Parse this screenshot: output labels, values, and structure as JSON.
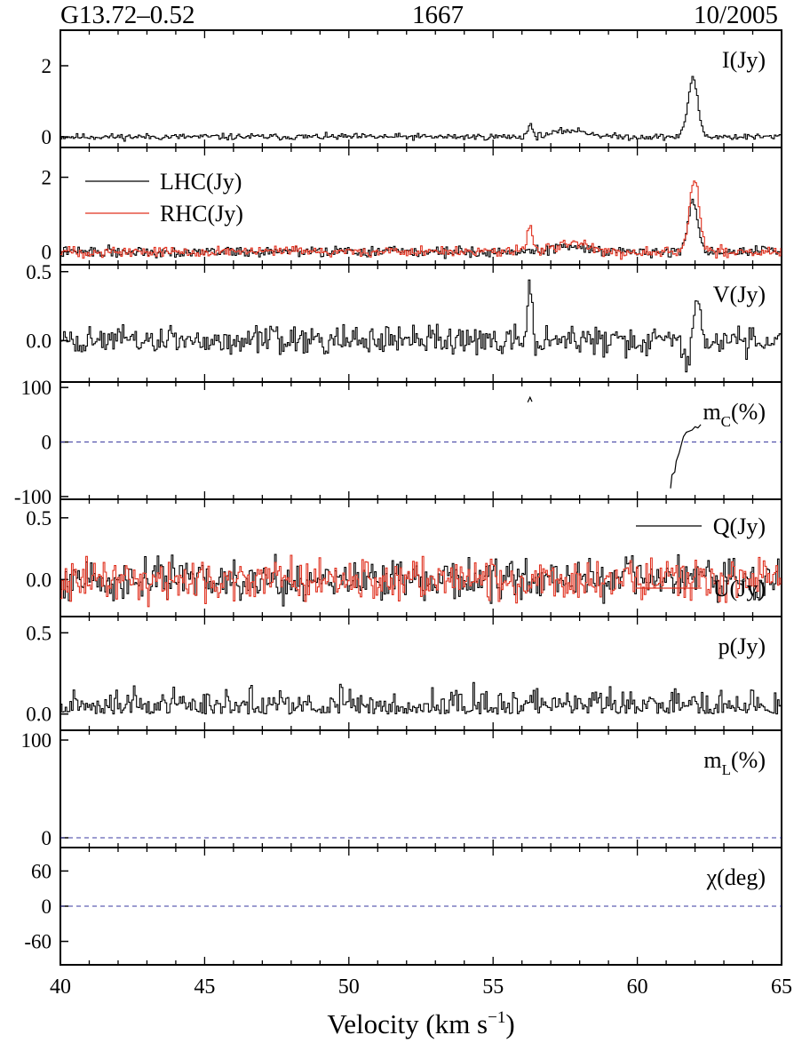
{
  "header": {
    "source": "G13.72–0.52",
    "transition": "1667",
    "epoch": "10/2005"
  },
  "colors": {
    "black": "#000000",
    "red": "#e0301e",
    "dashed": "#3a3aa0"
  },
  "chart_data": {
    "type": "line",
    "shared_x": {
      "label": "Velocity (km s",
      "label_sup": "−1",
      "label_tail": ")",
      "range": [
        40,
        65
      ],
      "ticks": [
        40,
        45,
        50,
        55,
        60,
        65
      ]
    },
    "panels": [
      {
        "id": "I",
        "label_main": "I(Jy)",
        "ylim": [
          -0.3,
          3.0
        ],
        "yticks": [
          0,
          2
        ],
        "features": [
          {
            "v": 56.25,
            "amp": 0.35,
            "w": 0.08
          },
          {
            "v": 57.7,
            "amp": 0.18,
            "w": 0.6
          },
          {
            "v": 61.9,
            "amp": 1.65,
            "w": 0.17
          }
        ],
        "series": [
          {
            "color": "black",
            "seed": 11,
            "noise": 0.045
          }
        ]
      },
      {
        "id": "LHC_RHC",
        "ylim": [
          -0.35,
          2.8
        ],
        "yticks": [
          0,
          2
        ],
        "legend": [
          {
            "name": "LHC(Jy)",
            "color": "black"
          },
          {
            "name": "RHC(Jy)",
            "color": "red"
          }
        ],
        "series": [
          {
            "name": "LHC(Jy)",
            "color": "black",
            "seed": 22,
            "noise": 0.07,
            "features": [
              {
                "v": 57.7,
                "amp": 0.15,
                "w": 0.6
              },
              {
                "v": 61.9,
                "amp": 1.35,
                "w": 0.17
              }
            ]
          },
          {
            "name": "RHC(Jy)",
            "color": "red",
            "seed": 33,
            "noise": 0.07,
            "features": [
              {
                "v": 56.25,
                "amp": 0.75,
                "w": 0.09
              },
              {
                "v": 57.7,
                "amp": 0.2,
                "w": 0.6
              },
              {
                "v": 61.95,
                "amp": 2.0,
                "w": 0.17
              }
            ]
          }
        ]
      },
      {
        "id": "V",
        "label_main": "V(Jy)",
        "ylim": [
          -0.3,
          0.55
        ],
        "yticks": [
          0.5,
          0.0
        ],
        "series": [
          {
            "color": "black",
            "seed": 44,
            "noise": 0.05,
            "features": [
              {
                "v": 56.25,
                "amp": 0.35,
                "w": 0.08
              },
              {
                "v": 61.7,
                "amp": -0.2,
                "w": 0.12
              },
              {
                "v": 62.05,
                "amp": 0.32,
                "w": 0.12
              }
            ]
          }
        ]
      },
      {
        "id": "mC",
        "label_main": "m",
        "label_sub": "C",
        "label_tail": "(%)",
        "ylim": [
          -105,
          110
        ],
        "yticks": [
          100,
          0,
          -100
        ],
        "zero_line": true,
        "curves": [
          {
            "color": "black",
            "x": [
              56.2,
              56.28,
              56.35
            ],
            "y": [
              73,
              82,
              74
            ]
          },
          {
            "color": "black",
            "x": [
              61.15,
              61.2,
              61.3,
              61.35,
              61.45,
              61.55,
              61.6,
              61.7,
              61.8,
              61.9,
              62.0,
              62.1,
              62.2
            ],
            "y": [
              -85,
              -60,
              -55,
              -35,
              -20,
              0,
              10,
              18,
              20,
              22,
              28,
              26,
              32
            ]
          }
        ]
      },
      {
        "id": "QU",
        "ylim": [
          -0.3,
          0.65
        ],
        "yticks": [
          0.5,
          0.0
        ],
        "legend": [
          {
            "name": "Q(Jy)",
            "color": "black"
          },
          {
            "name": "U(Jy)",
            "color": "red"
          }
        ],
        "series": [
          {
            "name": "Q(Jy)",
            "color": "black",
            "seed": 55,
            "noise": 0.08
          },
          {
            "name": "U(Jy)",
            "color": "red",
            "seed": 66,
            "noise": 0.08
          }
        ]
      },
      {
        "id": "p",
        "label_main": "p(Jy)",
        "ylim": [
          -0.1,
          0.6
        ],
        "yticks": [
          0.5,
          0.0
        ],
        "series": [
          {
            "color": "black",
            "seed": 77,
            "noise": 0.055,
            "positive": true
          }
        ]
      },
      {
        "id": "mL",
        "label_main": "m",
        "label_sub": "L",
        "label_tail": "(%)",
        "ylim": [
          -10,
          110
        ],
        "yticks": [
          100,
          0
        ],
        "zero_line": true
      },
      {
        "id": "chi",
        "label_main": "χ(deg)",
        "ylim": [
          -100,
          100
        ],
        "yticks": [
          60,
          0,
          -60
        ],
        "zero_line": true
      }
    ]
  }
}
